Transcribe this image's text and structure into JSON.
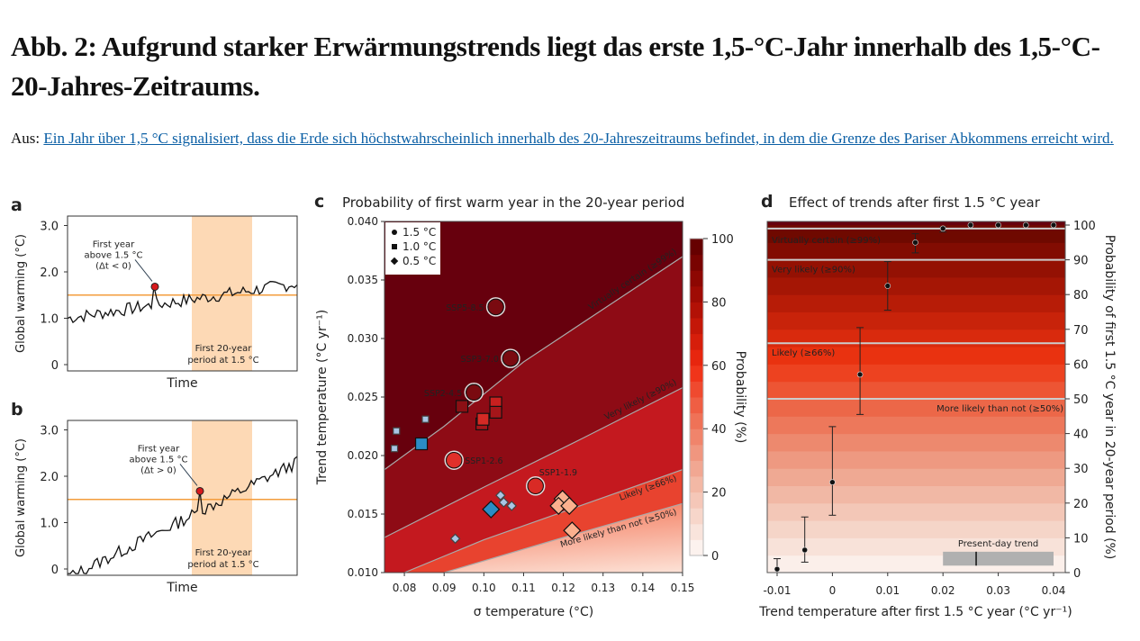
{
  "title": "Abb. 2: Aufgrund starker Erwärmungstrends liegt das erste 1,5-°C-Jahr innerhalb des 1,5-°C-20-Jahres-Zeitraums.",
  "source_prefix": "Aus:",
  "source_link": "Ein Jahr über 1,5 °C signalisiert, dass die Erde sich höchstwahrscheinlich innerhalb des 20-Jahreszeitraums befindet, in dem die Grenze des Pariser Abkommens erreicht wird.",
  "chart_data": [
    {
      "panel": "a",
      "type": "line",
      "xlabel": "Time",
      "ylabel": "Global warming (°C)",
      "yticks": [
        "0",
        "1.0",
        "2.0",
        "3.0"
      ],
      "ylim": [
        0,
        3
      ],
      "threshold": 1.5,
      "annotation": [
        "First year",
        "above 1.5 °C",
        "(Δt < 0)"
      ],
      "band_label": [
        "First 20-year",
        "period at 1.5 °C"
      ],
      "colors": {
        "line": "#111111",
        "threshold": "#f39c3c",
        "band": "#fdd9b5",
        "dot": "#d7191c"
      }
    },
    {
      "panel": "b",
      "type": "line",
      "xlabel": "Time",
      "ylabel": "Global warming (°C)",
      "yticks": [
        "0",
        "1.0",
        "2.0",
        "3.0"
      ],
      "ylim": [
        0,
        3
      ],
      "threshold": 1.5,
      "annotation": [
        "First year",
        "above 1.5 °C",
        "(Δt > 0)"
      ],
      "band_label": [
        "First 20-year",
        "period at 1.5 °C"
      ]
    },
    {
      "panel": "c",
      "type": "scatter",
      "title": "Probability of first warm year in the 20-year period",
      "xlabel": "σ temperature (°C)",
      "ylabel": "Trend temperature (°C yr⁻¹)",
      "xlim": [
        0.075,
        0.15
      ],
      "ylim": [
        0.01,
        0.04
      ],
      "xticks": [
        "0.08",
        "0.09",
        "0.10",
        "0.11",
        "0.12",
        "0.13",
        "0.14",
        "0.15"
      ],
      "yticks": [
        "0.010",
        "0.015",
        "0.020",
        "0.025",
        "0.030",
        "0.035",
        "0.040"
      ],
      "colorbar": {
        "label": "Probability (%)",
        "ticks": [
          "0",
          "20",
          "40",
          "60",
          "80",
          "100"
        ]
      },
      "legend": [
        {
          "marker": "circle",
          "label": "1.5 °C"
        },
        {
          "marker": "square",
          "label": "1.0 °C"
        },
        {
          "marker": "diamond",
          "label": "0.5 °C"
        }
      ],
      "contours": [
        {
          "label": "Virtually certain (≥99%)",
          "line": [
            [
              0.075,
              0.0188
            ],
            [
              0.09,
              0.0225
            ],
            [
              0.11,
              0.028
            ],
            [
              0.13,
              0.0325
            ],
            [
              0.15,
              0.037
            ]
          ]
        },
        {
          "label": "Very likely (≥90%)",
          "line": [
            [
              0.075,
              0.013
            ],
            [
              0.1,
              0.0173
            ],
            [
              0.125,
              0.0215
            ],
            [
              0.15,
              0.0258
            ]
          ]
        },
        {
          "label": "Likely (≥66%)",
          "line": [
            [
              0.08,
              0.01
            ],
            [
              0.1,
              0.0128
            ],
            [
              0.125,
              0.0158
            ],
            [
              0.15,
              0.0188
            ]
          ]
        },
        {
          "label": "More likely than not (≥50%)",
          "line": [
            [
              0.09,
              0.01
            ],
            [
              0.12,
              0.013
            ],
            [
              0.15,
              0.0159
            ]
          ]
        }
      ],
      "points": [
        {
          "marker": "circle",
          "x": 0.103,
          "y": 0.0327,
          "label": "SSP5-8.5",
          "color": "#7a0a10"
        },
        {
          "marker": "circle",
          "x": 0.1067,
          "y": 0.0283,
          "label": "SSP3-7.0",
          "color": "#7a0a10"
        },
        {
          "marker": "circle",
          "x": 0.0975,
          "y": 0.0254,
          "label": "SSP2-4.5",
          "color": "#7a0a10"
        },
        {
          "marker": "circle",
          "x": 0.0925,
          "y": 0.0196,
          "label": "SSP1-2.6",
          "color": "#e0302a"
        },
        {
          "marker": "circle",
          "x": 0.113,
          "y": 0.0174,
          "label": "SSP1-1.9",
          "color": "#d92a25"
        },
        {
          "marker": "square",
          "x": 0.0945,
          "y": 0.0242,
          "color": "#8b0f14",
          "big": true
        },
        {
          "marker": "square",
          "x": 0.103,
          "y": 0.0245,
          "color": "#c8201f",
          "big": true
        },
        {
          "marker": "square",
          "x": 0.103,
          "y": 0.0237,
          "color": "#a5161a",
          "big": true
        },
        {
          "marker": "square",
          "x": 0.0995,
          "y": 0.0227,
          "color": "#a5161a",
          "big": true
        },
        {
          "marker": "square",
          "x": 0.0998,
          "y": 0.0231,
          "color": "#d42a25",
          "big": true
        },
        {
          "marker": "square",
          "x": 0.0843,
          "y": 0.021,
          "color": "#2b8cc4",
          "big": true
        },
        {
          "marker": "square",
          "x": 0.078,
          "y": 0.0221,
          "color": "#a9c6e4",
          "big": false
        },
        {
          "marker": "square",
          "x": 0.0775,
          "y": 0.0206,
          "color": "#a9c6e4",
          "big": false
        },
        {
          "marker": "square",
          "x": 0.0853,
          "y": 0.0231,
          "color": "#a9c6e4",
          "big": false
        },
        {
          "marker": "diamond",
          "x": 0.1018,
          "y": 0.0154,
          "color": "#2b8cc4",
          "big": true
        },
        {
          "marker": "diamond",
          "x": 0.1042,
          "y": 0.0166,
          "color": "#a9c6e4",
          "big": false
        },
        {
          "marker": "diamond",
          "x": 0.105,
          "y": 0.016,
          "color": "#a9c6e4",
          "big": false
        },
        {
          "marker": "diamond",
          "x": 0.107,
          "y": 0.0157,
          "color": "#a9c6e4",
          "big": false
        },
        {
          "marker": "diamond",
          "x": 0.0928,
          "y": 0.0129,
          "color": "#a9c6e4",
          "big": false
        },
        {
          "marker": "diamond",
          "x": 0.1198,
          "y": 0.0163,
          "color": "#fbb08e",
          "big": true
        },
        {
          "marker": "diamond",
          "x": 0.1188,
          "y": 0.0157,
          "color": "#fbb08e",
          "big": true
        },
        {
          "marker": "diamond",
          "x": 0.1215,
          "y": 0.0157,
          "color": "#fbb08e",
          "big": true
        },
        {
          "marker": "diamond",
          "x": 0.1222,
          "y": 0.0136,
          "color": "#fbb08e",
          "big": true
        }
      ]
    },
    {
      "panel": "d",
      "type": "scatter",
      "title": "Effect of trends after first 1.5 °C year",
      "xlabel": "Trend temperature after first 1.5 °C year (°C yr⁻¹)",
      "ylabel": "Probability of first 1.5 °C year in 20-year period (%)",
      "xlim": [
        -0.012,
        0.042
      ],
      "ylim": [
        0,
        100
      ],
      "xticks": [
        "-0.01",
        "0",
        "0.01",
        "0.02",
        "0.03",
        "0.04"
      ],
      "yticks": [
        "0",
        "10",
        "20",
        "30",
        "40",
        "50",
        "60",
        "70",
        "80",
        "90",
        "100"
      ],
      "thresholds": [
        {
          "value": 99,
          "label": "Virtually certain (≥99%)"
        },
        {
          "value": 90,
          "label": "Very likely (≥90%)"
        },
        {
          "value": 66,
          "label": "Likely (≥66%)"
        },
        {
          "value": 50,
          "label": "More likely than not (≥50%)"
        }
      ],
      "points": [
        {
          "x": -0.01,
          "y": 1,
          "lo": 0,
          "hi": 4
        },
        {
          "x": -0.005,
          "y": 6.5,
          "lo": 3,
          "hi": 16
        },
        {
          "x": 0,
          "y": 26,
          "lo": 16.5,
          "hi": 42
        },
        {
          "x": 0.005,
          "y": 57,
          "lo": 45.5,
          "hi": 70.5
        },
        {
          "x": 0.01,
          "y": 82.5,
          "lo": 75.5,
          "hi": 89.5
        },
        {
          "x": 0.015,
          "y": 95,
          "lo": 92,
          "hi": 97.5
        },
        {
          "x": 0.02,
          "y": 99,
          "lo": 98,
          "hi": 99.5
        },
        {
          "x": 0.025,
          "y": 100
        },
        {
          "x": 0.03,
          "y": 100
        },
        {
          "x": 0.035,
          "y": 100
        },
        {
          "x": 0.04,
          "y": 100
        }
      ],
      "present_day_trend": {
        "label": "Present-day trend",
        "range": [
          0.02,
          0.04
        ],
        "central": 0.026
      }
    }
  ]
}
